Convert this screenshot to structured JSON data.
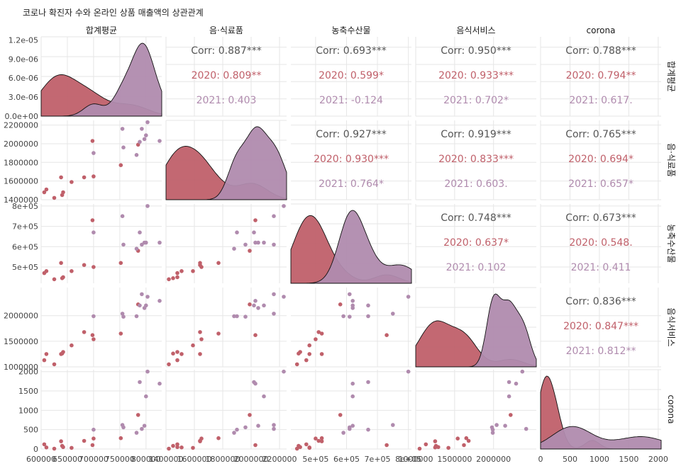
{
  "title": "코로나 확진자 수와 온라인 상품 매출액의 상관관계",
  "colors": {
    "y2020": "#c0606a",
    "y2021": "#b08bae",
    "overall": "#555555"
  },
  "chart_data": {
    "type": "scatter",
    "variables": [
      "합계평균",
      "음·식료품",
      "농축수산물",
      "음식서비스",
      "corona"
    ],
    "groups": [
      "2020",
      "2021"
    ],
    "axes": {
      "합계평균": {
        "lim": [
          600000,
          830000
        ],
        "ticks": [
          600000,
          650000,
          700000,
          750000,
          800000
        ],
        "tick_labels": [
          "600000",
          "650000",
          "700000",
          "750000",
          "800000"
        ]
      },
      "음·식료품": {
        "lim": [
          1400000,
          2250000
        ],
        "ticks": [
          1400000,
          1600000,
          1800000,
          2000000,
          2200000
        ],
        "tick_labels": [
          "1400000",
          "1600000",
          "1800000",
          "2000000",
          "2200000"
        ]
      },
      "농축수산물": {
        "lim": [
          420000,
          810000
        ],
        "ticks": [
          500000,
          600000,
          700000,
          800000
        ],
        "tick_labels": [
          "5e+05",
          "6e+05",
          "7e+05",
          "8e+05"
        ]
      },
      "음식서비스": {
        "lim": [
          1000000,
          2550000
        ],
        "ticks": [
          1000000,
          1500000,
          2000000
        ],
        "tick_labels": [
          "1000000",
          "1500000",
          "2000000"
        ]
      },
      "corona": {
        "lim": [
          0,
          2050
        ],
        "ticks": [
          0,
          500,
          1000,
          1500,
          2000
        ],
        "tick_labels": [
          "0",
          "500",
          "1000",
          "1500",
          "2000"
        ]
      }
    },
    "density_axis": {
      "lim": [
        0,
        1.25e-05
      ],
      "ticks": [
        0,
        3e-06,
        6e-06,
        9e-06,
        1.2e-05
      ],
      "tick_labels": [
        "0.0e+00",
        "3.0e-06",
        "6.0e-06",
        "9.0e-06",
        "1.2e-05"
      ]
    },
    "points": {
      "2020": [
        [
          606000,
          1480000,
          470000,
          1130000,
          120
        ],
        [
          610000,
          1510000,
          480000,
          1250000,
          40
        ],
        [
          625000,
          1420000,
          440000,
          1050000,
          10
        ],
        [
          638000,
          1640000,
          520000,
          1250000,
          200
        ],
        [
          640000,
          1450000,
          445000,
          1260000,
          80
        ],
        [
          642000,
          1480000,
          450000,
          1290000,
          50
        ],
        [
          658000,
          1590000,
          480000,
          1420000,
          30
        ],
        [
          682000,
          1640000,
          510000,
          1680000,
          210
        ],
        [
          698000,
          2030000,
          730000,
          1620000,
          100
        ],
        [
          700000,
          1650000,
          500000,
          1540000,
          270
        ],
        [
          752000,
          1770000,
          520000,
          1650000,
          280
        ],
        [
          785000,
          1990000,
          580000,
          2220000,
          880
        ]
      ],
      "2021": [
        [
          700000,
          1900000,
          670000,
          1990000,
          500
        ],
        [
          755000,
          2160000,
          750000,
          2040000,
          620
        ],
        [
          757000,
          1960000,
          610000,
          1980000,
          560
        ],
        [
          782000,
          1880000,
          590000,
          1990000,
          420
        ],
        [
          788000,
          2020000,
          670000,
          2200000,
          1730
        ],
        [
          792000,
          2160000,
          610000,
          2420000,
          520
        ],
        [
          797000,
          2050000,
          620000,
          2150000,
          600
        ],
        [
          800000,
          2090000,
          620000,
          2200000,
          1360
        ],
        [
          803000,
          2230000,
          800000,
          2370000,
          2000
        ],
        [
          826000,
          2030000,
          620000,
          2290000,
          1690
        ]
      ]
    },
    "correlations": [
      {
        "row": "합계평균",
        "col": "음·식료품",
        "corr": "Corr: 0.887***",
        "y2020": "2020: 0.809**",
        "y2021": "2021: 0.403"
      },
      {
        "row": "합계평균",
        "col": "농축수산물",
        "corr": "Corr: 0.693***",
        "y2020": "2020: 0.599*",
        "y2021": "2021: -0.124"
      },
      {
        "row": "합계평균",
        "col": "음식서비스",
        "corr": "Corr: 0.950***",
        "y2020": "2020: 0.933***",
        "y2021": "2021: 0.702*"
      },
      {
        "row": "합계평균",
        "col": "corona",
        "corr": "Corr: 0.788***",
        "y2020": "2020: 0.794**",
        "y2021": "2021: 0.617."
      },
      {
        "row": "음·식료품",
        "col": "농축수산물",
        "corr": "Corr: 0.927***",
        "y2020": "2020: 0.930***",
        "y2021": "2021: 0.764*"
      },
      {
        "row": "음·식료품",
        "col": "음식서비스",
        "corr": "Corr: 0.919***",
        "y2020": "2020: 0.833***",
        "y2021": "2021: 0.603."
      },
      {
        "row": "음·식료품",
        "col": "corona",
        "corr": "Corr: 0.765***",
        "y2020": "2020: 0.694*",
        "y2021": "2021: 0.657*"
      },
      {
        "row": "농축수산물",
        "col": "음식서비스",
        "corr": "Corr: 0.748***",
        "y2020": "2020: 0.637*",
        "y2021": "2021: 0.102"
      },
      {
        "row": "농축수산물",
        "col": "corona",
        "corr": "Corr: 0.673***",
        "y2020": "2020: 0.548.",
        "y2021": "2021: 0.411"
      },
      {
        "row": "음식서비스",
        "col": "corona",
        "corr": "Corr: 0.836***",
        "y2020": "2020: 0.847***",
        "y2021": "2021: 0.812**"
      }
    ],
    "grid": true
  }
}
